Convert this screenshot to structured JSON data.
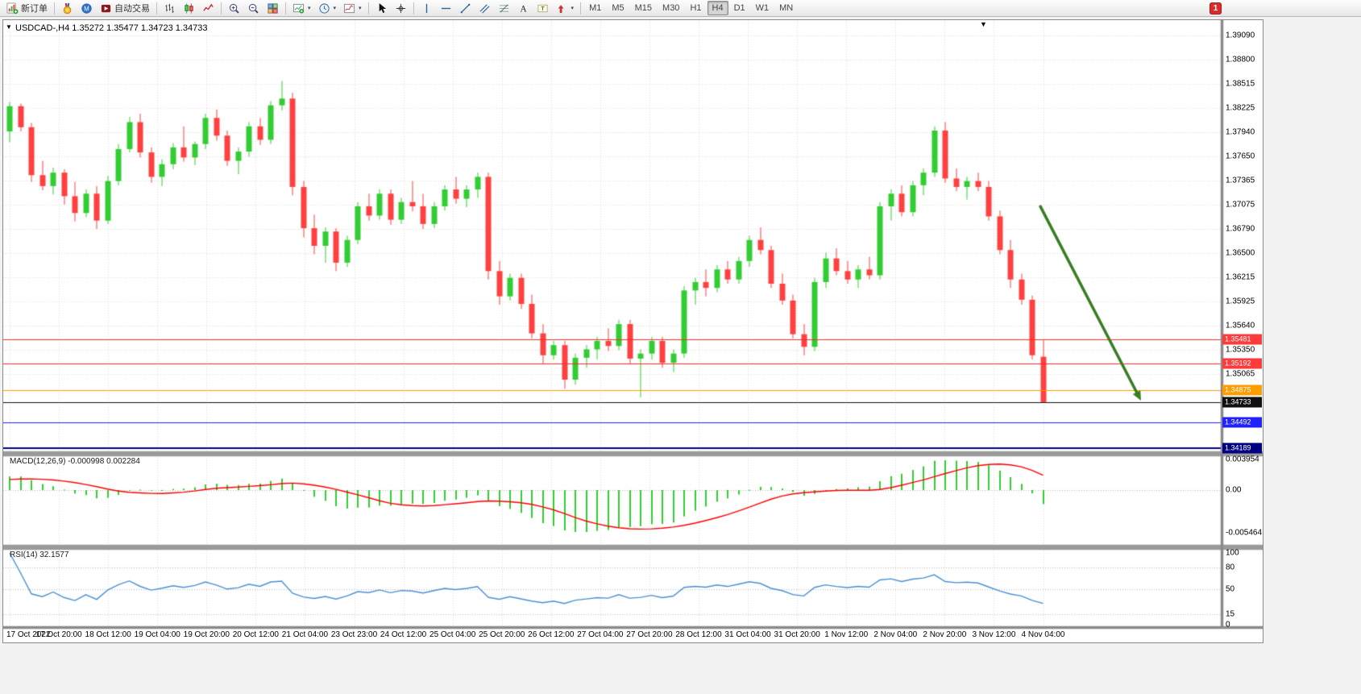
{
  "toolbar": {
    "notification_count": "1",
    "items": [
      {
        "type": "button",
        "name": "new-order-button",
        "icon": "new-order-icon",
        "label": "新订单"
      },
      {
        "type": "sep"
      },
      {
        "type": "button",
        "name": "mql5-button",
        "icon": "medal-icon"
      },
      {
        "type": "button",
        "name": "community-button",
        "icon": "community-icon"
      },
      {
        "type": "button",
        "name": "autotrade-button",
        "icon": "autotrade-icon",
        "label": "自动交易"
      },
      {
        "type": "sep"
      },
      {
        "type": "button",
        "name": "bar-chart-button",
        "icon": "bar-chart-icon"
      },
      {
        "type": "button",
        "name": "candle-chart-button",
        "icon": "candle-chart-icon"
      },
      {
        "type": "button",
        "name": "line-chart-button",
        "icon": "line-chart-icon"
      },
      {
        "type": "sep"
      },
      {
        "type": "button",
        "name": "zoom-in-button",
        "icon": "zoom-in-icon"
      },
      {
        "type": "button",
        "name": "zoom-out-button",
        "icon": "zoom-out-icon"
      },
      {
        "type": "button",
        "name": "tile-windows-button",
        "icon": "tile-windows-icon"
      },
      {
        "type": "sep"
      },
      {
        "type": "button",
        "name": "new-chart-button",
        "icon": "new-chart-icon",
        "dropdown": true
      },
      {
        "type": "button",
        "name": "periods-button",
        "icon": "clock-icon",
        "dropdown": true
      },
      {
        "type": "button",
        "name": "indicators-button",
        "icon": "indicators-icon",
        "dropdown": true
      },
      {
        "type": "sep"
      },
      {
        "type": "button",
        "name": "cursor-button",
        "icon": "cursor-icon"
      },
      {
        "type": "button",
        "name": "crosshair-button",
        "icon": "crosshair-icon"
      },
      {
        "type": "sep"
      },
      {
        "type": "button",
        "name": "vertical-line-button",
        "icon": "vertical-line-icon"
      },
      {
        "type": "button",
        "name": "horizontal-line-button",
        "icon": "horizontal-line-icon"
      },
      {
        "type": "button",
        "name": "trendline-button",
        "icon": "trendline-icon"
      },
      {
        "type": "button",
        "name": "channel-button",
        "icon": "channel-icon"
      },
      {
        "type": "button",
        "name": "fibonacci-button",
        "icon": "fibonacci-icon"
      },
      {
        "type": "button",
        "name": "text-button",
        "icon": "text-icon"
      },
      {
        "type": "button",
        "name": "text-label-button",
        "icon": "text-label-icon"
      },
      {
        "type": "button",
        "name": "arrows-button",
        "icon": "arrows-icon",
        "dropdown": true
      },
      {
        "type": "sep"
      },
      {
        "type": "tf",
        "name": "timeframe-m1-button",
        "label": "M1"
      },
      {
        "type": "tf",
        "name": "timeframe-m5-button",
        "label": "M5"
      },
      {
        "type": "tf",
        "name": "timeframe-m15-button",
        "label": "M15"
      },
      {
        "type": "tf",
        "name": "timeframe-m30-button",
        "label": "M30"
      },
      {
        "type": "tf",
        "name": "timeframe-h1-button",
        "label": "H1"
      },
      {
        "type": "tf",
        "name": "timeframe-h4-button",
        "label": "H4",
        "active": true
      },
      {
        "type": "tf",
        "name": "timeframe-d1-button",
        "label": "D1"
      },
      {
        "type": "tf",
        "name": "timeframe-w1-button",
        "label": "W1"
      },
      {
        "type": "tf",
        "name": "timeframe-mn-button",
        "label": "MN"
      }
    ]
  },
  "chart": {
    "title": "USDCAD-,H4 1.35272 1.35477 1.34723 1.34733",
    "macd_label": "MACD(12,26,9) -0.000998 0.002284",
    "rsi_label": "RSI(14) 32.1577"
  },
  "chart_data": {
    "type": "candlestick",
    "symbol": "USDCAD-",
    "timeframe": "H4",
    "ohlc_current": {
      "open": 1.35272,
      "high": 1.35477,
      "low": 1.34723,
      "close": 1.34733
    },
    "price_axis": {
      "ylim": [
        1.34138,
        1.39272
      ],
      "ticks": [
        "1.39090",
        "1.38800",
        "1.38515",
        "1.38225",
        "1.37940",
        "1.37650",
        "1.37365",
        "1.37075",
        "1.36790",
        "1.36500",
        "1.36215",
        "1.35925",
        "1.35640",
        "1.35350",
        "1.35065"
      ]
    },
    "time_axis": {
      "labels": [
        "17 Oct 2022",
        "17 Oct 20:00",
        "18 Oct 12:00",
        "19 Oct 04:00",
        "19 Oct 20:00",
        "20 Oct 12:00",
        "21 Oct 04:00",
        "23 Oct 23:00",
        "24 Oct 12:00",
        "25 Oct 04:00",
        "25 Oct 20:00",
        "26 Oct 12:00",
        "27 Oct 04:00",
        "27 Oct 20:00",
        "28 Oct 12:00",
        "31 Oct 04:00",
        "31 Oct 20:00",
        "1 Nov 12:00",
        "2 Nov 04:00",
        "2 Nov 20:00",
        "3 Nov 12:00",
        "4 Nov 04:00"
      ]
    },
    "hlines": [
      {
        "price": 1.35481,
        "label": "1.35481",
        "color": "#FF2A2A",
        "badge": "#FF3B3B",
        "width": 1
      },
      {
        "price": 1.35192,
        "label": "1.35192",
        "color": "#FF2A2A",
        "badge": "#FF3B3B",
        "width": 1
      },
      {
        "price": 1.34875,
        "label": "1.34875",
        "color": "#FF9C00",
        "badge": "#FF9C00",
        "width": 1
      },
      {
        "price": 1.34733,
        "label": "1.34733",
        "color": "#101010",
        "badge": "#101010",
        "width": 1
      },
      {
        "price": 1.34492,
        "label": "1.34492",
        "color": "#2222FF",
        "badge": "#2222FF",
        "width": 1
      },
      {
        "price": 1.34189,
        "label": "1.34189",
        "color": "#000080",
        "badge": "#000080",
        "width": 2
      }
    ],
    "annotations": {
      "arrow": {
        "from": {
          "bar": 94.7,
          "price": 1.3707
        },
        "to": {
          "bar": 104,
          "price": 1.3475
        },
        "color": "#377D22",
        "width": 3.5
      }
    },
    "indicators": {
      "macd": {
        "params": "12,26,9",
        "value_main": "-0.000998",
        "value_signal": "0.002284",
        "ylim": [
          -0.00718,
          0.004475
        ],
        "ticks": [
          "0.003954",
          "0.00",
          "-0.005464"
        ],
        "histogram_color": "#32CD32",
        "signal_color": "#FF0000"
      },
      "rsi": {
        "params": "14",
        "current": "32.1577",
        "ticks": [
          "100",
          "80",
          "50",
          "15",
          "0"
        ],
        "levels": [
          80,
          50,
          15
        ],
        "line_color": "#4A90D2"
      }
    },
    "colors": {
      "bull": "#32CD32",
      "bear": "#FF4040",
      "grid": "#DCDCDC"
    },
    "candles": [
      [
        1.3795,
        1.383,
        1.3782,
        1.3825
      ],
      [
        1.3825,
        1.3828,
        1.3795,
        1.38
      ],
      [
        1.38,
        1.3805,
        1.3735,
        1.3743
      ],
      [
        1.3743,
        1.376,
        1.3725,
        1.373
      ],
      [
        1.373,
        1.3752,
        1.372,
        1.3746
      ],
      [
        1.3746,
        1.375,
        1.3708,
        1.3718
      ],
      [
        1.3718,
        1.3735,
        1.3688,
        1.3698
      ],
      [
        1.3698,
        1.3726,
        1.3693,
        1.3721
      ],
      [
        1.3721,
        1.373,
        1.3679,
        1.3689
      ],
      [
        1.3689,
        1.3742,
        1.3685,
        1.3736
      ],
      [
        1.3736,
        1.378,
        1.3731,
        1.3774
      ],
      [
        1.3774,
        1.3812,
        1.377,
        1.3806
      ],
      [
        1.3806,
        1.3816,
        1.3764,
        1.377
      ],
      [
        1.377,
        1.3776,
        1.3734,
        1.3741
      ],
      [
        1.3741,
        1.3762,
        1.373,
        1.3756
      ],
      [
        1.3756,
        1.3781,
        1.375,
        1.3776
      ],
      [
        1.3776,
        1.3801,
        1.3759,
        1.3764
      ],
      [
        1.3764,
        1.3783,
        1.3755,
        1.378
      ],
      [
        1.378,
        1.3816,
        1.3774,
        1.3811
      ],
      [
        1.3811,
        1.3821,
        1.3784,
        1.379
      ],
      [
        1.379,
        1.3796,
        1.3754,
        1.376
      ],
      [
        1.376,
        1.3776,
        1.3744,
        1.3771
      ],
      [
        1.3771,
        1.3806,
        1.3765,
        1.3801
      ],
      [
        1.3801,
        1.3811,
        1.3779,
        1.3785
      ],
      [
        1.3785,
        1.3831,
        1.378,
        1.3826
      ],
      [
        1.3826,
        1.3855,
        1.382,
        1.3834
      ],
      [
        1.3834,
        1.3841,
        1.3719,
        1.3729
      ],
      [
        1.3729,
        1.3736,
        1.3669,
        1.368
      ],
      [
        1.368,
        1.3696,
        1.3649,
        1.3659
      ],
      [
        1.3659,
        1.3681,
        1.3639,
        1.3676
      ],
      [
        1.3676,
        1.368,
        1.3629,
        1.3639
      ],
      [
        1.3639,
        1.3671,
        1.3634,
        1.3666
      ],
      [
        1.3666,
        1.3711,
        1.3661,
        1.3706
      ],
      [
        1.3706,
        1.3721,
        1.3689,
        1.3695
      ],
      [
        1.3695,
        1.3726,
        1.369,
        1.3721
      ],
      [
        1.3721,
        1.3726,
        1.3684,
        1.369
      ],
      [
        1.369,
        1.3716,
        1.3685,
        1.3711
      ],
      [
        1.3711,
        1.3736,
        1.37,
        1.3706
      ],
      [
        1.3706,
        1.3721,
        1.3679,
        1.3685
      ],
      [
        1.3685,
        1.3711,
        1.368,
        1.3706
      ],
      [
        1.3706,
        1.3731,
        1.3701,
        1.3726
      ],
      [
        1.3726,
        1.3741,
        1.3709,
        1.3715
      ],
      [
        1.3715,
        1.3731,
        1.3705,
        1.3726
      ],
      [
        1.3726,
        1.3746,
        1.3716,
        1.3741
      ],
      [
        1.3741,
        1.3746,
        1.3619,
        1.3629
      ],
      [
        1.3629,
        1.3641,
        1.3589,
        1.3599
      ],
      [
        1.3599,
        1.3626,
        1.3594,
        1.3621
      ],
      [
        1.3621,
        1.3626,
        1.3584,
        1.359
      ],
      [
        1.359,
        1.3601,
        1.3549,
        1.3555
      ],
      [
        1.3555,
        1.3566,
        1.3519,
        1.3529
      ],
      [
        1.3529,
        1.3546,
        1.3524,
        1.3541
      ],
      [
        1.3541,
        1.3546,
        1.3489,
        1.35
      ],
      [
        1.35,
        1.3531,
        1.3494,
        1.3526
      ],
      [
        1.3526,
        1.3541,
        1.3514,
        1.3536
      ],
      [
        1.3536,
        1.3551,
        1.3524,
        1.3546
      ],
      [
        1.3546,
        1.3561,
        1.3534,
        1.354
      ],
      [
        1.354,
        1.3571,
        1.3535,
        1.3566
      ],
      [
        1.3566,
        1.3571,
        1.3519,
        1.3525
      ],
      [
        1.3525,
        1.3536,
        1.3479,
        1.3531
      ],
      [
        1.3531,
        1.3551,
        1.3524,
        1.3546
      ],
      [
        1.3546,
        1.3551,
        1.3514,
        1.352
      ],
      [
        1.352,
        1.3536,
        1.3509,
        1.3531
      ],
      [
        1.3531,
        1.3611,
        1.3526,
        1.3606
      ],
      [
        1.3606,
        1.3621,
        1.3589,
        1.3616
      ],
      [
        1.3616,
        1.3631,
        1.3599,
        1.3609
      ],
      [
        1.3609,
        1.3636,
        1.3604,
        1.3631
      ],
      [
        1.3631,
        1.3641,
        1.3614,
        1.3619
      ],
      [
        1.3619,
        1.3646,
        1.3614,
        1.3641
      ],
      [
        1.3641,
        1.3671,
        1.3634,
        1.3666
      ],
      [
        1.3666,
        1.3681,
        1.3649,
        1.3654
      ],
      [
        1.3654,
        1.3659,
        1.3609,
        1.3614
      ],
      [
        1.3614,
        1.3626,
        1.3589,
        1.3594
      ],
      [
        1.3594,
        1.3601,
        1.3549,
        1.3554
      ],
      [
        1.3554,
        1.3566,
        1.3529,
        1.3539
      ],
      [
        1.3539,
        1.3621,
        1.3534,
        1.3616
      ],
      [
        1.3616,
        1.3651,
        1.3609,
        1.3644
      ],
      [
        1.3644,
        1.3656,
        1.3624,
        1.3629
      ],
      [
        1.3629,
        1.3641,
        1.3614,
        1.3619
      ],
      [
        1.3619,
        1.3636,
        1.3609,
        1.3631
      ],
      [
        1.3631,
        1.3646,
        1.3619,
        1.3624
      ],
      [
        1.3624,
        1.3711,
        1.3619,
        1.3706
      ],
      [
        1.3706,
        1.3726,
        1.3689,
        1.3721
      ],
      [
        1.3721,
        1.3731,
        1.3694,
        1.3699
      ],
      [
        1.3699,
        1.3736,
        1.3694,
        1.3731
      ],
      [
        1.3731,
        1.3751,
        1.3719,
        1.3746
      ],
      [
        1.3746,
        1.3801,
        1.3741,
        1.3796
      ],
      [
        1.3796,
        1.3806,
        1.3734,
        1.3739
      ],
      [
        1.3739,
        1.3751,
        1.3724,
        1.3729
      ],
      [
        1.3729,
        1.3741,
        1.3714,
        1.3736
      ],
      [
        1.3736,
        1.3746,
        1.3724,
        1.3729
      ],
      [
        1.3729,
        1.3736,
        1.3689,
        1.3694
      ],
      [
        1.3694,
        1.3701,
        1.3649,
        1.3654
      ],
      [
        1.3654,
        1.3666,
        1.3609,
        1.3619
      ],
      [
        1.3619,
        1.3626,
        1.3589,
        1.3595
      ],
      [
        1.3595,
        1.36,
        1.3524,
        1.3529
      ],
      [
        1.35272,
        1.35477,
        1.34723,
        1.34733
      ]
    ]
  }
}
